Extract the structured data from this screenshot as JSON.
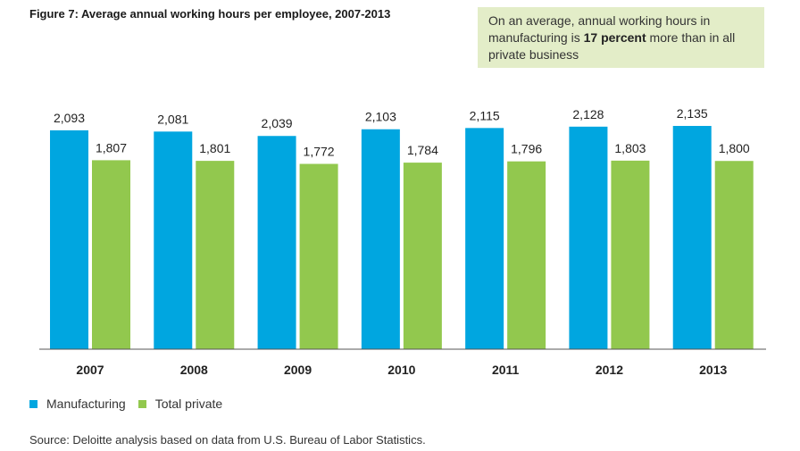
{
  "figure": {
    "title": "Figure 7: Average annual working hours per employee, 2007-2013"
  },
  "callout": {
    "prefix": "On an average, annual working hours in manufacturing is ",
    "emphasis": "17 percent",
    "suffix": " more than in all private business"
  },
  "colors": {
    "manufacturing": "#00a6e0",
    "total_private": "#92c84e"
  },
  "source": "Source: Deloitte analysis based on data from U.S. Bureau of Labor Statistics.",
  "chart_data": {
    "type": "bar",
    "title": "Figure 7: Average annual working hours per employee, 2007-2013",
    "xlabel": "",
    "ylabel": "",
    "categories": [
      "2007",
      "2008",
      "2009",
      "2010",
      "2011",
      "2012",
      "2013"
    ],
    "series": [
      {
        "name": "Manufacturing",
        "values": [
          2093,
          2081,
          2039,
          2103,
          2115,
          2128,
          2135
        ],
        "labels": [
          "2,093",
          "2,081",
          "2,039",
          "2,103",
          "2,115",
          "2,128",
          "2,135"
        ]
      },
      {
        "name": "Total private",
        "values": [
          1807,
          1801,
          1772,
          1784,
          1796,
          1803,
          1800
        ],
        "labels": [
          "1,807",
          "1,801",
          "1,772",
          "1,784",
          "1,796",
          "1,803",
          "1,800"
        ]
      }
    ],
    "ylim": [
      0,
      2135
    ],
    "grid": false,
    "legend": "bottom-left"
  }
}
